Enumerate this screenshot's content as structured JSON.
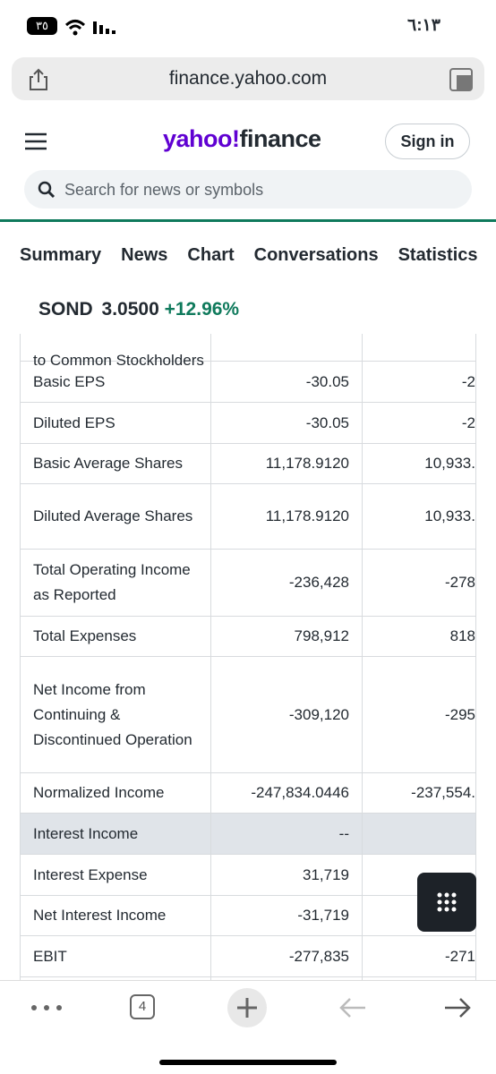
{
  "status_bar": {
    "time": "٦:١٣",
    "battery": "٣٥"
  },
  "browser": {
    "url": "finance.yahoo.com",
    "tab_count": "4"
  },
  "header": {
    "logo_yahoo": "yahoo!",
    "logo_finance": "finance",
    "sign_in": "Sign in",
    "search_placeholder": "Search for news or symbols"
  },
  "tabs": [
    "Summary",
    "News",
    "Chart",
    "Conversations",
    "Statistics"
  ],
  "quote": {
    "symbol": "SOND",
    "price": "3.0500",
    "change": "+12.96%"
  },
  "table": {
    "rows": [
      [
        "to Common Stockholders"
      ],
      [
        "Basic EPS",
        "-30.05",
        "-2"
      ],
      [
        "Diluted EPS",
        "-30.05",
        "-2"
      ],
      [
        "Basic Average Shares",
        "11,178.9120",
        "10,933."
      ],
      [
        "Diluted Average Shares",
        "11,178.9120",
        "10,933."
      ],
      [
        "Total Operating Income as Reported",
        "-236,428",
        "-278"
      ],
      [
        "Total Expenses",
        "798,912",
        "818"
      ],
      [
        "Net Income from Continuing & Discontinued Operation",
        "-309,120",
        "-295"
      ],
      [
        "Normalized Income",
        "-247,834.0446",
        "-237,554."
      ],
      [
        "Interest Income",
        "--"
      ],
      [
        "Interest Expense",
        "31,719"
      ],
      [
        "Net Interest Income",
        "-31,719"
      ],
      [
        "EBIT",
        "-277,835",
        "-271"
      ]
    ]
  }
}
